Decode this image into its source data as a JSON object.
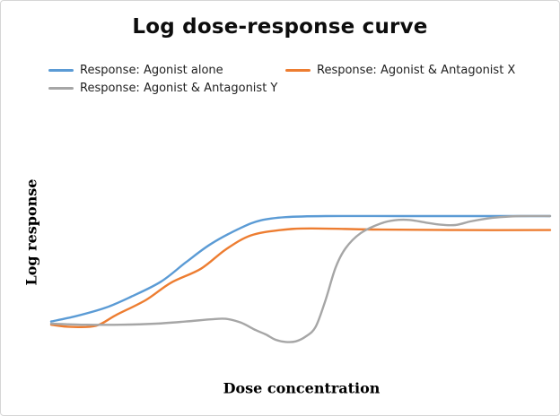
{
  "page": {
    "title": "Log dose-response curve"
  },
  "axes": {
    "x_label": "Dose concentration",
    "y_label": "Log response"
  },
  "legend": {
    "items": [
      {
        "label": "Response: Agonist alone"
      },
      {
        "label": "Response: Agonist & Antagonist X"
      },
      {
        "label": "Response: Agonist & Antagonist Y"
      }
    ]
  },
  "chart_data": {
    "type": "line",
    "title": "Log dose-response curve",
    "xlabel": "Dose concentration",
    "ylabel": "Log response",
    "x_range_norm": [
      0,
      100
    ],
    "y_range_norm": [
      -0.2,
      1.05
    ],
    "ticks_visible": false,
    "grid": false,
    "legend_position": "top-left, two columns",
    "note": "Axes are unlabeled log-scale; point values are normalized (x: 0-100 dose position, y: 0-1 max response)",
    "series": [
      {
        "name": "Response: Agonist alone",
        "color": "#5B9BD5",
        "shape": "sigmoid rising to full response",
        "points": [
          [
            0,
            0.02
          ],
          [
            5,
            0.07
          ],
          [
            11,
            0.15
          ],
          [
            16,
            0.25
          ],
          [
            22,
            0.39
          ],
          [
            27,
            0.57
          ],
          [
            32,
            0.74
          ],
          [
            38,
            0.89
          ],
          [
            42,
            0.96
          ],
          [
            47,
            0.99
          ],
          [
            55,
            1.0
          ],
          [
            70,
            1.0
          ],
          [
            85,
            1.0
          ],
          [
            100,
            1.0
          ]
        ]
      },
      {
        "name": "Response: Agonist & Antagonist X",
        "color": "#ED7D31",
        "shape": "right-shifted sigmoid with reduced maximum",
        "points": [
          [
            0,
            -0.01
          ],
          [
            4,
            -0.03
          ],
          [
            9,
            -0.02
          ],
          [
            13,
            0.08
          ],
          [
            19,
            0.22
          ],
          [
            24,
            0.38
          ],
          [
            30,
            0.51
          ],
          [
            35,
            0.69
          ],
          [
            40,
            0.82
          ],
          [
            46,
            0.87
          ],
          [
            52,
            0.885
          ],
          [
            65,
            0.875
          ],
          [
            80,
            0.87
          ],
          [
            100,
            0.87
          ]
        ]
      },
      {
        "name": "Response: Agonist & Antagonist Y",
        "color": "#A6A6A6",
        "shape": "flat with small bump, negative dip, then steep rise with overshoot settling at full response",
        "points": [
          [
            0,
            0
          ],
          [
            7,
            -0.01
          ],
          [
            14,
            -0.01
          ],
          [
            21,
            0
          ],
          [
            27,
            0.02
          ],
          [
            32,
            0.04
          ],
          [
            35,
            0.045
          ],
          [
            38,
            0.01
          ],
          [
            41,
            -0.06
          ],
          [
            43,
            -0.1
          ],
          [
            45,
            -0.15
          ],
          [
            47,
            -0.17
          ],
          [
            49,
            -0.165
          ],
          [
            51,
            -0.12
          ],
          [
            53,
            -0.03
          ],
          [
            55,
            0.22
          ],
          [
            57,
            0.52
          ],
          [
            59,
            0.7
          ],
          [
            62,
            0.84
          ],
          [
            66,
            0.93
          ],
          [
            69,
            0.962
          ],
          [
            72,
            0.963
          ],
          [
            75,
            0.94
          ],
          [
            78,
            0.92
          ],
          [
            81,
            0.917
          ],
          [
            84,
            0.95
          ],
          [
            87,
            0.975
          ],
          [
            90,
            0.99
          ],
          [
            94,
            1.0
          ],
          [
            100,
            1.0
          ]
        ]
      }
    ]
  }
}
